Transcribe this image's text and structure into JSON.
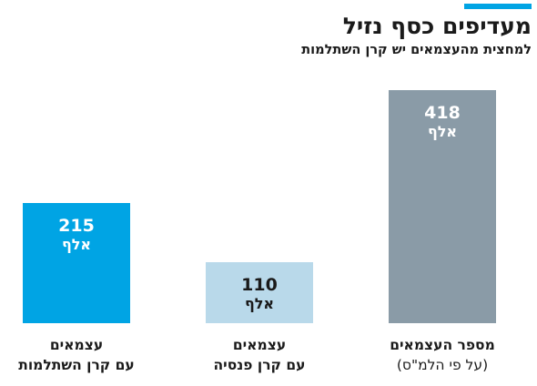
{
  "header": {
    "title": "מעדיפים כסף נזיל",
    "subtitle": "למחצית מהעצמאים יש קרן השתלמות",
    "accent_color": "#00a4e4"
  },
  "chart_data": {
    "type": "bar",
    "title": "מעדיפים כסף נזיל",
    "subtitle": "למחצית מהעצמאים יש קרן השתלמות",
    "unit": "אלף",
    "categories": [
      [
        "עצמאים",
        "עם קרן השתלמות"
      ],
      [
        "עצמאים",
        "עם קרן פנסיה"
      ],
      [
        "מספר העצמאים",
        "(על פי הלמ\"ס)"
      ]
    ],
    "values": [
      215,
      110,
      418
    ],
    "value_labels": [
      "215",
      "110",
      "418"
    ],
    "ylim": [
      0,
      418
    ],
    "grid": false,
    "legend": "none",
    "colors": [
      "#00a4e4",
      "#b9d9ea",
      "#8a9ba7"
    ],
    "label_colors": [
      "#ffffff",
      "#1a1a1a",
      "#ffffff"
    ],
    "second_line_bold": [
      true,
      true,
      false
    ]
  }
}
